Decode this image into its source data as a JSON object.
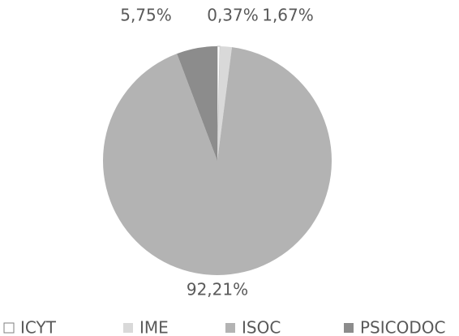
{
  "chart_data": {
    "type": "pie",
    "categories": [
      "ICYT",
      "IME",
      "ISOC",
      "PSICODOC"
    ],
    "values": [
      0.37,
      1.67,
      92.21,
      5.75
    ],
    "value_labels": [
      "0,37%",
      "1,67%",
      "92,21%",
      "5,75%"
    ],
    "colors": [
      "#ffffff",
      "#d9d9d9",
      "#b3b3b3",
      "#8c8c8c"
    ],
    "legend": "bottom"
  }
}
